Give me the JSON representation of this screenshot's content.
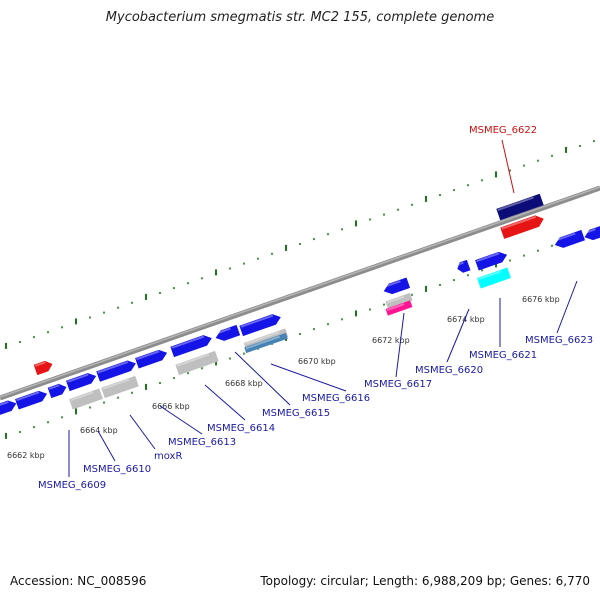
{
  "title": "Mycobacterium smegmatis str. MC2 155, complete genome",
  "footer": {
    "accession": "Accession: NC_008596",
    "summary": "Topology: circular; Length: 6,988,209 bp; Genes: 6,770"
  },
  "colors": {
    "gene_blue": "#1414e6",
    "gene_red": "#e61414",
    "gene_navy": "#0c0c78",
    "gene_cyan": "#00ffff",
    "gene_gray": "#bfbfbf",
    "gene_steel": "#4682b4",
    "gene_magenta": "#ff1493",
    "label_blue": "#1a1aa6",
    "label_red": "#cc1111",
    "tick_green": "#1a7a1a",
    "backbone": "#8c8c8c"
  },
  "tick_labels": [
    "6662 kbp",
    "6664 kbp",
    "6666 kbp",
    "6668 kbp",
    "6670 kbp",
    "6672 kbp",
    "6674 kbp",
    "6676 kbp"
  ],
  "gene_labels": [
    {
      "text": "MSMEG_6609",
      "color": "blue"
    },
    {
      "text": "MSMEG_6610",
      "color": "blue"
    },
    {
      "text": "moxR",
      "color": "blue"
    },
    {
      "text": "MSMEG_6613",
      "color": "blue"
    },
    {
      "text": "MSMEG_6614",
      "color": "blue"
    },
    {
      "text": "MSMEG_6615",
      "color": "blue"
    },
    {
      "text": "MSMEG_6616",
      "color": "blue"
    },
    {
      "text": "MSMEG_6617",
      "color": "blue"
    },
    {
      "text": "MSMEG_6620",
      "color": "blue"
    },
    {
      "text": "MSMEG_6621",
      "color": "blue"
    },
    {
      "text": "MSMEG_6623",
      "color": "blue"
    },
    {
      "text": "MSMEG_6622",
      "color": "red"
    }
  ]
}
